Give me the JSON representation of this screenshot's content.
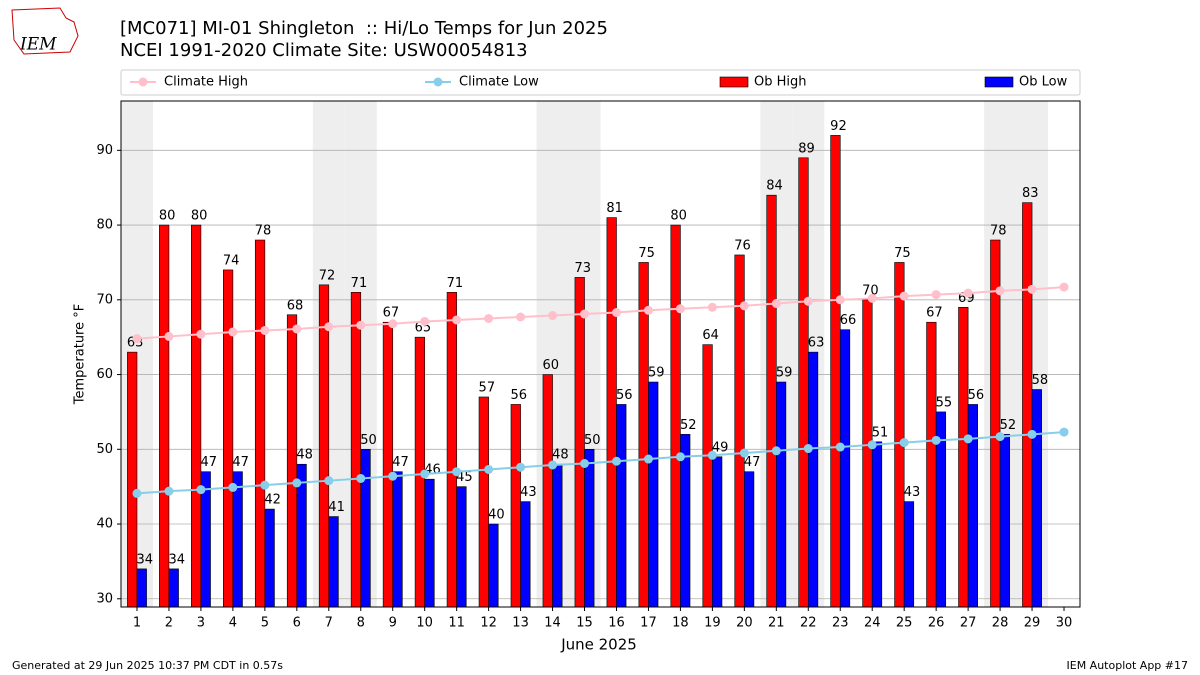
{
  "chart_data": {
    "type": "bar",
    "title": "[MC071] MI-01 Shingleton  :: Hi/Lo Temps for Jun 2025",
    "subtitle": "NCEI 1991-2020 Climate Site: USW00054813",
    "x_label": "June 2025",
    "y_label": "Temperature °F",
    "footer_left": "Generated at 29 Jun 2025 10:37 PM CDT in 0.57s",
    "footer_right": "IEM Autoplot App #17",
    "logo": "IEM",
    "categories": [
      "1",
      "2",
      "3",
      "4",
      "5",
      "6",
      "7",
      "8",
      "9",
      "10",
      "11",
      "12",
      "13",
      "14",
      "15",
      "16",
      "17",
      "18",
      "19",
      "20",
      "21",
      "22",
      "23",
      "24",
      "25",
      "26",
      "27",
      "28",
      "29",
      "30"
    ],
    "series": [
      {
        "name": "Climate High",
        "type": "line",
        "color": "#ffc0cb",
        "values": [
          64.8,
          65.1,
          65.4,
          65.7,
          65.9,
          66.1,
          66.4,
          66.6,
          66.8,
          67.1,
          67.3,
          67.5,
          67.7,
          67.9,
          68.1,
          68.3,
          68.6,
          68.8,
          69.0,
          69.2,
          69.5,
          69.8,
          70.0,
          70.2,
          70.5,
          70.7,
          70.9,
          71.2,
          71.4,
          71.7
        ]
      },
      {
        "name": "Climate Low",
        "type": "line",
        "color": "#87ceeb",
        "values": [
          44.1,
          44.4,
          44.6,
          44.9,
          45.2,
          45.5,
          45.8,
          46.1,
          46.4,
          46.7,
          47.0,
          47.3,
          47.6,
          47.9,
          48.1,
          48.4,
          48.7,
          49.0,
          49.2,
          49.5,
          49.8,
          50.1,
          50.3,
          50.6,
          50.9,
          51.2,
          51.4,
          51.7,
          52.0,
          52.3
        ]
      },
      {
        "name": "Ob High",
        "type": "bar",
        "color": "#ff0000",
        "values": [
          63,
          80,
          80,
          74,
          78,
          68,
          72,
          71,
          67,
          65,
          71,
          57,
          56,
          60,
          73,
          81,
          75,
          80,
          64,
          76,
          84,
          89,
          92,
          70,
          75,
          67,
          69,
          78,
          83,
          null
        ]
      },
      {
        "name": "Ob Low",
        "type": "bar",
        "color": "#0000ff",
        "values": [
          34,
          34,
          47,
          47,
          42,
          48,
          41,
          50,
          47,
          46,
          45,
          40,
          43,
          48,
          50,
          56,
          59,
          52,
          49,
          47,
          59,
          63,
          66,
          51,
          43,
          55,
          56,
          52,
          58,
          null
        ]
      }
    ],
    "ylim": [
      28.9,
      96.6
    ],
    "yticks": [
      30,
      40,
      50,
      60,
      70,
      80,
      90
    ],
    "grid": true
  }
}
